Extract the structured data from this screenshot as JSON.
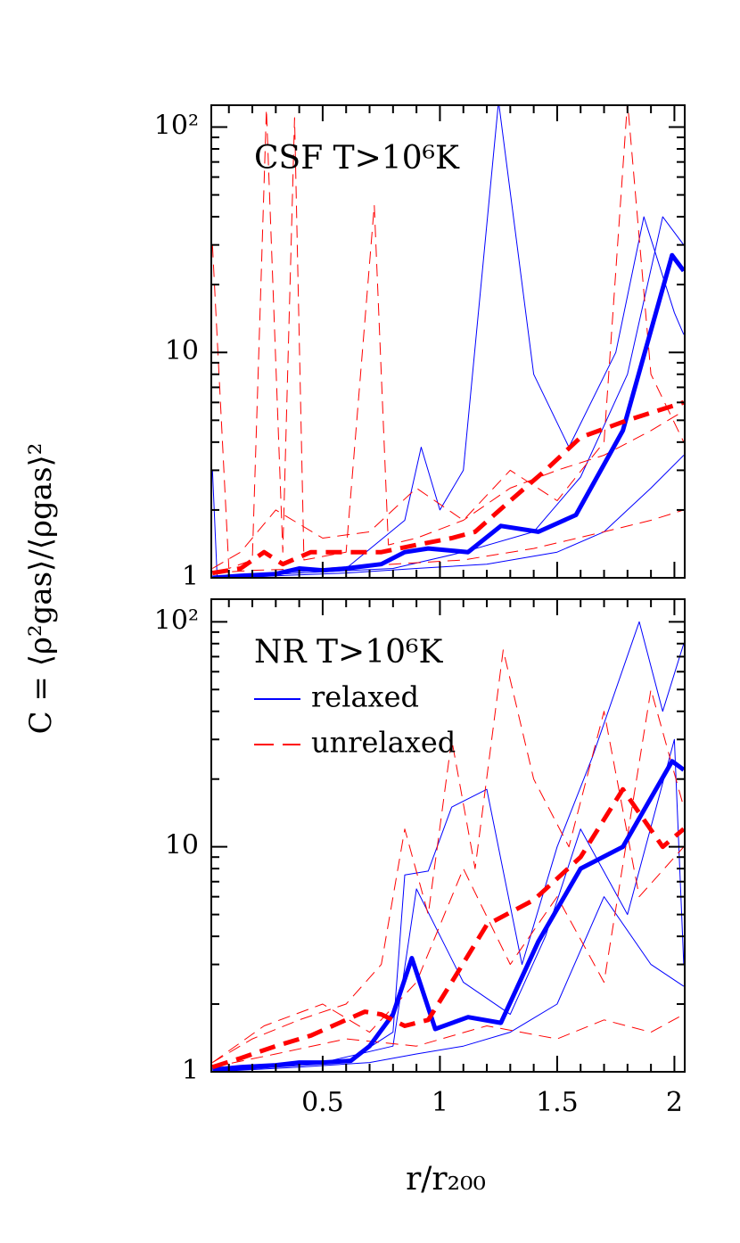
{
  "ylabel": "C = ⟨ρ²gas⟩/⟨ρgas⟩²",
  "xlabel": "r/r₂₀₀",
  "chart_data": [
    {
      "type": "line",
      "annotation": "CSF T>10⁶K",
      "log_y": true,
      "xlim": [
        0.025,
        2.044
      ],
      "ylim": [
        1,
        125
      ],
      "xticks": [
        0.5,
        1,
        1.5,
        2
      ],
      "xticklabels": false,
      "xminor": [
        0.1,
        0.2,
        0.3,
        0.4,
        0.6,
        0.7,
        0.8,
        0.9,
        1.1,
        1.2,
        1.3,
        1.4,
        1.6,
        1.7,
        1.8,
        1.9
      ],
      "yticks": [
        1,
        10,
        {
          "value": 100,
          "label": "10²"
        }
      ],
      "yminor": [
        2,
        3,
        4,
        5,
        6,
        7,
        8,
        9,
        20,
        30,
        40,
        50,
        60,
        70,
        80,
        90
      ],
      "series": [
        {
          "color": "#0000ff",
          "linewidth": 1,
          "dash": false,
          "x": [
            0.03,
            0.05,
            0.3,
            0.6,
            0.85,
            0.92,
            1.0,
            1.1,
            1.25,
            1.4,
            1.55,
            1.75,
            1.87,
            2.0,
            2.04
          ],
          "values": [
            3,
            1.0,
            1.05,
            1.1,
            1.8,
            3.8,
            2,
            3,
            130,
            8,
            3.8,
            10,
            40,
            15,
            12
          ]
        },
        {
          "color": "#0000ff",
          "linewidth": 1,
          "dash": false,
          "x": [
            0.03,
            0.3,
            0.6,
            0.9,
            1.2,
            1.5,
            1.7,
            1.9,
            2.04
          ],
          "values": [
            1.0,
            1.02,
            1.05,
            1.1,
            1.15,
            1.3,
            1.6,
            2.5,
            3.5
          ]
        },
        {
          "color": "#0000ff",
          "linewidth": 1,
          "dash": false,
          "x": [
            0.03,
            0.4,
            0.8,
            1.1,
            1.4,
            1.6,
            1.8,
            1.95,
            2.04
          ],
          "values": [
            1.0,
            1.05,
            1.1,
            1.3,
            1.6,
            2.8,
            8,
            40,
            30
          ]
        },
        {
          "color": "#ff0000",
          "linewidth": 1,
          "dash": true,
          "x": [
            0.03,
            0.1,
            0.2,
            0.26,
            0.33,
            0.38,
            0.42,
            0.6,
            0.72,
            0.78,
            0.9,
            1.1,
            1.3,
            1.5,
            1.7,
            1.9,
            2.04
          ],
          "values": [
            30,
            1.1,
            1.2,
            120,
            1.3,
            110,
            1.2,
            1.3,
            45,
            1.4,
            1.5,
            1.8,
            2.5,
            3.0,
            3.5,
            4.5,
            5.5
          ]
        },
        {
          "color": "#ff0000",
          "linewidth": 1,
          "dash": true,
          "x": [
            0.03,
            0.2,
            0.5,
            0.8,
            1.1,
            1.4,
            1.7,
            1.9,
            2.04
          ],
          "values": [
            1.05,
            1.08,
            1.1,
            1.15,
            1.2,
            1.35,
            1.6,
            1.8,
            2.0
          ]
        },
        {
          "color": "#ff0000",
          "linewidth": 1,
          "dash": true,
          "x": [
            0.03,
            0.15,
            0.3,
            0.5,
            0.7,
            0.9,
            1.1,
            1.3,
            1.5,
            1.7,
            1.8,
            1.9,
            2.04
          ],
          "values": [
            1.1,
            1.3,
            2.0,
            1.5,
            1.6,
            2.5,
            1.8,
            3.0,
            2.2,
            4.0,
            130,
            8,
            4
          ]
        },
        {
          "color": "#0000ff",
          "linewidth": 5,
          "dash": false,
          "x": [
            0.03,
            0.15,
            0.3,
            0.4,
            0.5,
            0.6,
            0.75,
            0.85,
            0.95,
            1.12,
            1.26,
            1.42,
            1.58,
            1.78,
            1.99,
            2.04
          ],
          "values": [
            1.0,
            1.02,
            1.04,
            1.1,
            1.08,
            1.1,
            1.15,
            1.3,
            1.35,
            1.3,
            1.7,
            1.6,
            1.9,
            4.5,
            27,
            23
          ]
        },
        {
          "color": "#ff0000",
          "linewidth": 5,
          "dash": true,
          "x": [
            0.03,
            0.15,
            0.25,
            0.33,
            0.45,
            0.6,
            0.75,
            0.9,
            1.05,
            1.15,
            1.3,
            1.45,
            1.6,
            1.8,
            2.04
          ],
          "values": [
            1.05,
            1.1,
            1.3,
            1.15,
            1.3,
            1.3,
            1.3,
            1.4,
            1.5,
            1.6,
            2.2,
            3.0,
            4.2,
            5.0,
            6
          ]
        }
      ]
    },
    {
      "type": "line",
      "annotation": "NR T>10⁶K",
      "log_y": true,
      "xlim": [
        0.025,
        2.044
      ],
      "ylim": [
        1,
        126
      ],
      "xticks": [
        0.5,
        1,
        1.5,
        2
      ],
      "xticklabels": true,
      "xminor": [
        0.1,
        0.2,
        0.3,
        0.4,
        0.6,
        0.7,
        0.8,
        0.9,
        1.1,
        1.2,
        1.3,
        1.4,
        1.6,
        1.7,
        1.8,
        1.9
      ],
      "yticks": [
        1,
        10,
        {
          "value": 100,
          "label": "10²"
        }
      ],
      "yminor": [
        2,
        3,
        4,
        5,
        6,
        7,
        8,
        9,
        20,
        30,
        40,
        50,
        60,
        70,
        80,
        90
      ],
      "series": [
        {
          "name": "relaxed",
          "color": "#0000ff",
          "linewidth": 1,
          "dash": false,
          "x": [
            0.03,
            0.3,
            0.6,
            0.8,
            0.85,
            0.95,
            1.05,
            1.2,
            1.35,
            1.5,
            1.65,
            1.85,
            1.95,
            2.04
          ],
          "values": [
            1.0,
            1.05,
            1.1,
            1.5,
            7.5,
            7.8,
            15,
            18,
            3,
            10,
            25,
            100,
            40,
            80
          ]
        },
        {
          "color": "#0000ff",
          "linewidth": 1,
          "dash": false,
          "x": [
            0.03,
            0.4,
            0.7,
            0.9,
            1.1,
            1.3,
            1.5,
            1.7,
            1.9,
            2.04
          ],
          "values": [
            1.0,
            1.05,
            1.1,
            1.2,
            1.3,
            1.5,
            2.0,
            6,
            3,
            2.4
          ]
        },
        {
          "color": "#0000ff",
          "linewidth": 1,
          "dash": false,
          "x": [
            0.03,
            0.5,
            0.8,
            0.9,
            1.1,
            1.3,
            1.45,
            1.6,
            1.8,
            2.0,
            2.04
          ],
          "values": [
            1.0,
            1.1,
            1.3,
            6.5,
            2.5,
            1.8,
            4,
            12,
            5,
            30,
            3
          ]
        },
        {
          "name": "unrelaxed",
          "color": "#ff0000",
          "linewidth": 1,
          "dash": true,
          "x": [
            0.03,
            0.2,
            0.4,
            0.6,
            0.75,
            0.85,
            0.95,
            1.05,
            1.15,
            1.27,
            1.4,
            1.55,
            1.7,
            1.85,
            2.04
          ],
          "values": [
            1.1,
            1.4,
            1.7,
            2.0,
            3.0,
            12,
            5,
            30,
            8,
            75,
            20,
            10,
            40,
            6,
            10
          ]
        },
        {
          "color": "#ff0000",
          "linewidth": 1,
          "dash": true,
          "x": [
            0.03,
            0.3,
            0.6,
            0.9,
            1.2,
            1.5,
            1.7,
            1.9,
            2.04
          ],
          "values": [
            1.05,
            1.2,
            1.4,
            1.3,
            1.6,
            1.4,
            1.7,
            1.5,
            1.8
          ]
        },
        {
          "color": "#ff0000",
          "linewidth": 1,
          "dash": true,
          "x": [
            0.03,
            0.25,
            0.5,
            0.7,
            0.9,
            1.1,
            1.3,
            1.5,
            1.7,
            1.9,
            2.04
          ],
          "values": [
            1.1,
            1.6,
            2.0,
            1.5,
            2.5,
            8,
            3,
            6,
            2.5,
            50,
            15
          ]
        },
        {
          "color": "#0000ff",
          "linewidth": 5,
          "dash": false,
          "x": [
            0.03,
            0.15,
            0.3,
            0.4,
            0.5,
            0.62,
            0.7,
            0.8,
            0.88,
            0.98,
            1.12,
            1.26,
            1.42,
            1.6,
            1.78,
            1.99,
            2.04
          ],
          "values": [
            1.02,
            1.05,
            1.07,
            1.1,
            1.1,
            1.12,
            1.3,
            1.8,
            3.2,
            1.55,
            1.75,
            1.65,
            3.8,
            8,
            10,
            24,
            22
          ]
        },
        {
          "color": "#ff0000",
          "linewidth": 5,
          "dash": true,
          "x": [
            0.03,
            0.15,
            0.3,
            0.45,
            0.6,
            0.68,
            0.75,
            0.85,
            0.95,
            1.05,
            1.2,
            1.4,
            1.6,
            1.78,
            1.95,
            2.04
          ],
          "values": [
            1.05,
            1.15,
            1.3,
            1.45,
            1.7,
            1.85,
            1.8,
            1.6,
            1.7,
            2.5,
            4.5,
            5.8,
            9,
            18,
            10,
            12
          ]
        }
      ]
    }
  ]
}
